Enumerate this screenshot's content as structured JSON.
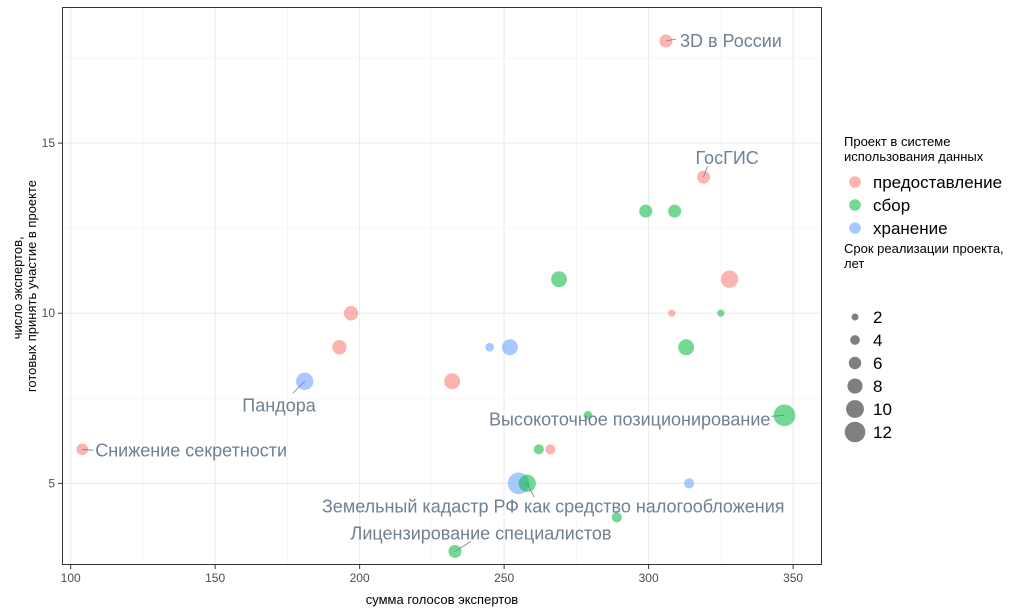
{
  "chart_data": {
    "type": "scatter",
    "xlabel": "сумма голосов экспертов",
    "ylabel_lines": [
      "число экспертов,",
      "готовых принять участие в проекте"
    ],
    "xlim": [
      97,
      360
    ],
    "ylim": [
      2.6,
      19
    ],
    "x_ticks": [
      100,
      150,
      200,
      250,
      300,
      350
    ],
    "y_ticks": [
      5,
      10,
      15
    ],
    "grid": true,
    "legend_placement": "right",
    "color_legend": {
      "title_lines": [
        "Проект в системе",
        "использования данных"
      ],
      "entries": [
        {
          "label": "предоставление",
          "color": "#F8766D"
        },
        {
          "label": "сбор",
          "color": "#00BA38"
        },
        {
          "label": "хранение",
          "color": "#619CFF"
        }
      ]
    },
    "size_legend": {
      "title_lines": [
        "Срок реализации проекта,",
        "лет"
      ],
      "entries": [
        2,
        4,
        6,
        8,
        10,
        12
      ]
    },
    "points": [
      {
        "x": 306,
        "y": 18,
        "category": "предоставление",
        "size": 6,
        "label": "3D в России"
      },
      {
        "x": 319,
        "y": 14,
        "category": "предоставление",
        "size": 6,
        "label": "ГосГИС"
      },
      {
        "x": 299,
        "y": 13,
        "category": "сбор",
        "size": 6
      },
      {
        "x": 309,
        "y": 13,
        "category": "сбор",
        "size": 6
      },
      {
        "x": 269,
        "y": 11,
        "category": "сбор",
        "size": 8
      },
      {
        "x": 328,
        "y": 11,
        "category": "предоставление",
        "size": 9
      },
      {
        "x": 197,
        "y": 10,
        "category": "предоставление",
        "size": 7
      },
      {
        "x": 308,
        "y": 10,
        "category": "предоставление",
        "size": 2
      },
      {
        "x": 325,
        "y": 10,
        "category": "сбор",
        "size": 2
      },
      {
        "x": 193,
        "y": 9,
        "category": "предоставление",
        "size": 7
      },
      {
        "x": 245,
        "y": 9,
        "category": "хранение",
        "size": 3
      },
      {
        "x": 252,
        "y": 9,
        "category": "хранение",
        "size": 8
      },
      {
        "x": 313,
        "y": 9,
        "category": "сбор",
        "size": 8
      },
      {
        "x": 181,
        "y": 8,
        "category": "хранение",
        "size": 9,
        "label": "Пандора"
      },
      {
        "x": 232,
        "y": 8,
        "category": "предоставление",
        "size": 8
      },
      {
        "x": 347,
        "y": 7,
        "category": "сбор",
        "size": 12,
        "label": "Высокоточное позиционирование"
      },
      {
        "x": 279,
        "y": 7,
        "category": "сбор",
        "size": 3
      },
      {
        "x": 104,
        "y": 6,
        "category": "предоставление",
        "size": 5,
        "label": "Снижение секретности"
      },
      {
        "x": 262,
        "y": 6,
        "category": "сбор",
        "size": 4
      },
      {
        "x": 266,
        "y": 6,
        "category": "предоставление",
        "size": 4
      },
      {
        "x": 255,
        "y": 5,
        "category": "хранение",
        "size": 12
      },
      {
        "x": 258,
        "y": 5,
        "category": "сбор",
        "size": 9,
        "label": "Земельный кадастр РФ как средство налогообложения"
      },
      {
        "x": 314,
        "y": 5,
        "category": "хранение",
        "size": 4
      },
      {
        "x": 289,
        "y": 4,
        "category": "сбор",
        "size": 4
      },
      {
        "x": 233,
        "y": 3,
        "category": "сбор",
        "size": 6,
        "label": "Лицензирование специалистов"
      }
    ]
  }
}
